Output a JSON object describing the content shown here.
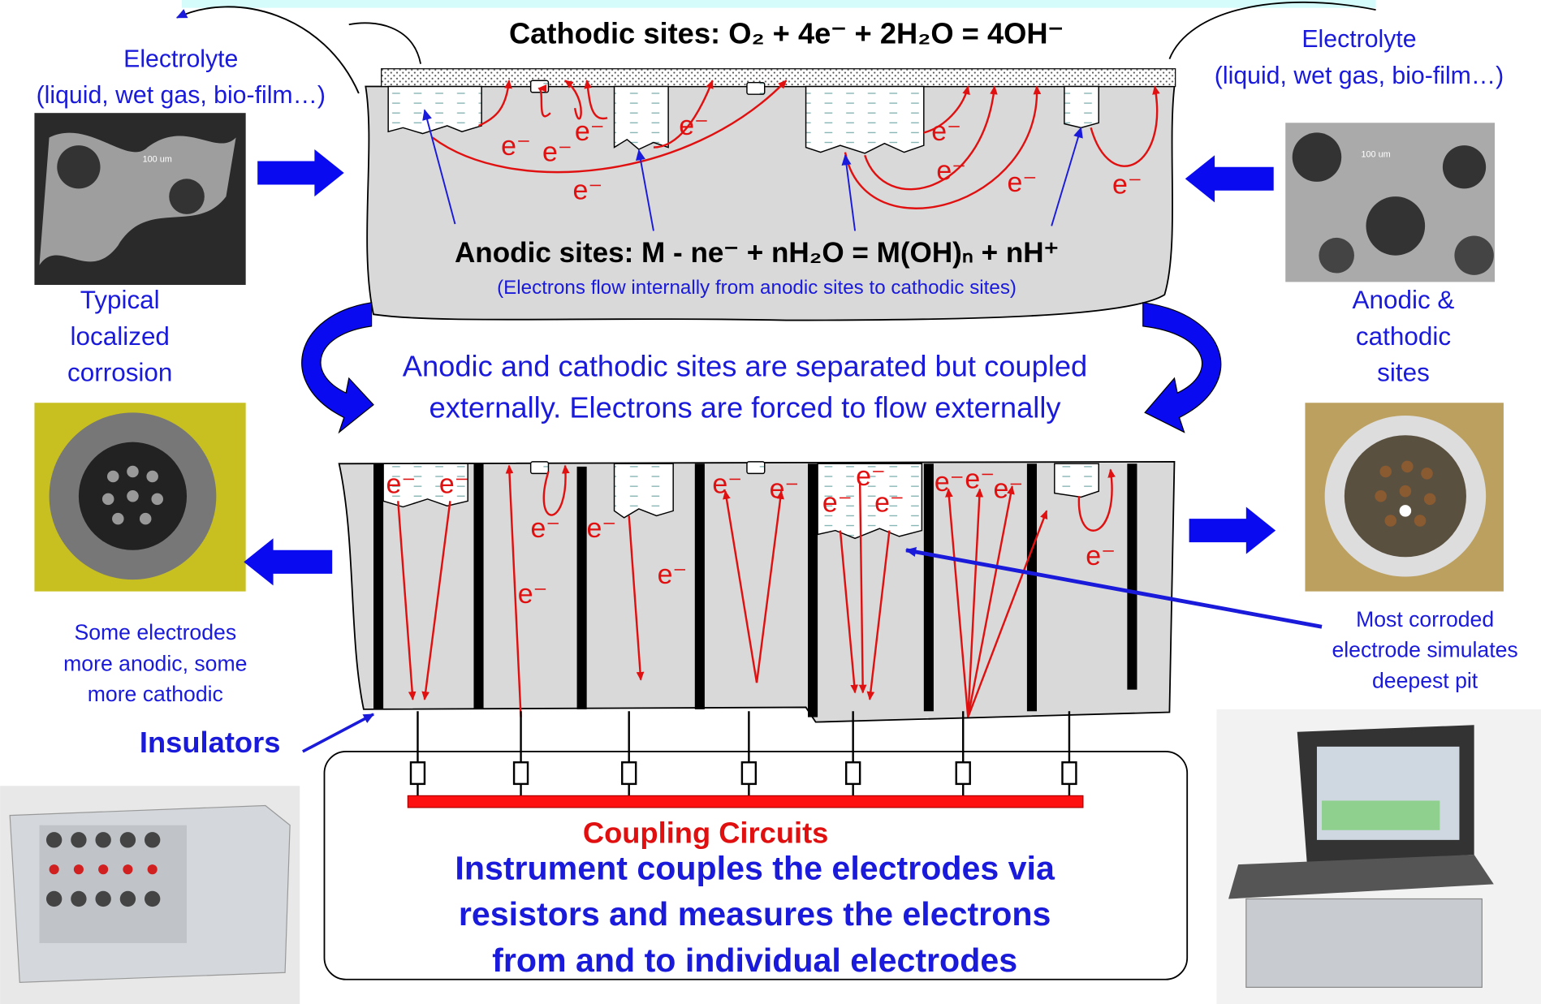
{
  "header": {
    "cathodic_equation": "Cathodic sites: O₂ + 4e⁻ + 2H₂O = 4OH⁻",
    "electrolyte_left": [
      "Electrolyte",
      "(liquid, wet gas, bio-film…)"
    ],
    "electrolyte_right": [
      "Electrolyte",
      "(liquid, wet gas, bio-film…)"
    ]
  },
  "top_block": {
    "anodic_equation": "Anodic sites: M - ne⁻ + nH₂O = M(OH)ₙ + nH⁺",
    "anodic_note": "(Electrons flow internally from anodic sites to cathodic sites)",
    "electron": "e⁻"
  },
  "left_caption": [
    "Typical",
    "localized",
    "corrosion"
  ],
  "right_caption": [
    "Anodic &",
    "cathodic",
    "sites"
  ],
  "micrograph_scale": "100 um",
  "middle_text": [
    "Anodic and cathodic sites are separated but coupled",
    "externally. Electrons are forced to flow externally"
  ],
  "left_note": [
    "Some electrodes",
    "more  anodic, some",
    "more cathodic"
  ],
  "right_note": [
    "Most corroded",
    "electrode simulates",
    "deepest pit"
  ],
  "insulators": "Insulators",
  "coupling_circuits": "Coupling Circuits",
  "instrument_text": [
    "Instrument couples the electrodes via",
    "resistors and measures the electrons",
    "from and to individual electrodes"
  ]
}
